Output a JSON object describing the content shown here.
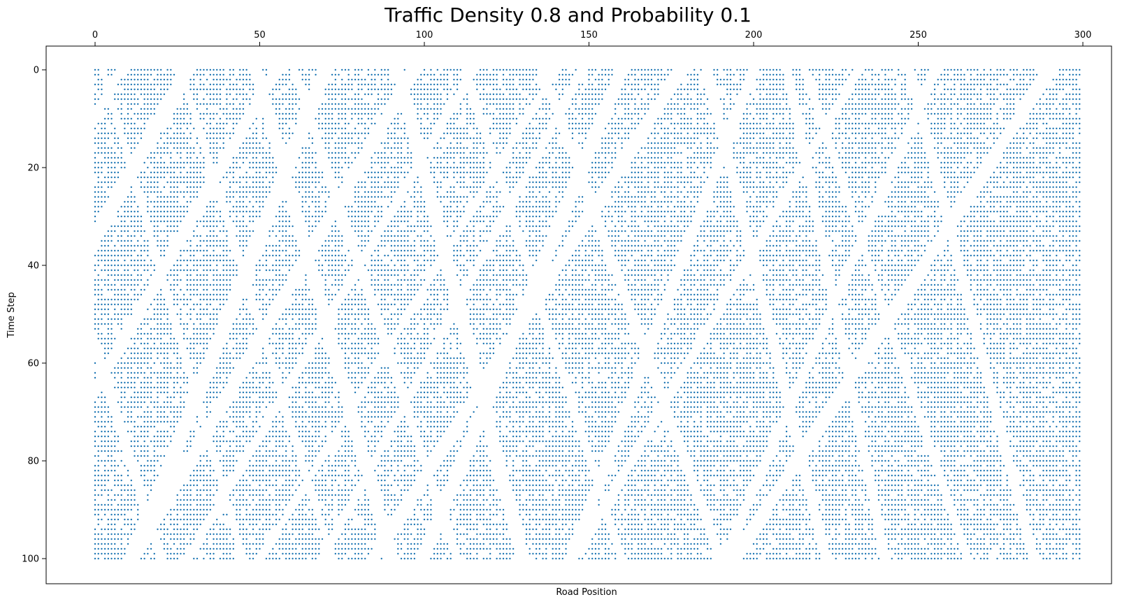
{
  "chart_data": {
    "type": "scatter",
    "title": "Traffic Density 0.8 and Probability 0.1",
    "xlabel": "Road Position",
    "ylabel": "Time Step",
    "x_ticks": [
      0,
      50,
      100,
      150,
      200,
      250,
      300
    ],
    "y_ticks": [
      0,
      20,
      40,
      60,
      80,
      100
    ],
    "xlim": [
      -15,
      310
    ],
    "ylim": [
      105,
      -5
    ],
    "x_axis_position": "top",
    "y_axis_inverted": true,
    "grid": false,
    "legend": "none",
    "marker_color": "#1f77b4",
    "series": [
      {
        "description_of_points": "occupied road cells per time step (cellular automaton traffic model)",
        "road_length": 300,
        "time_steps": 101,
        "density": 0.8
      }
    ]
  }
}
